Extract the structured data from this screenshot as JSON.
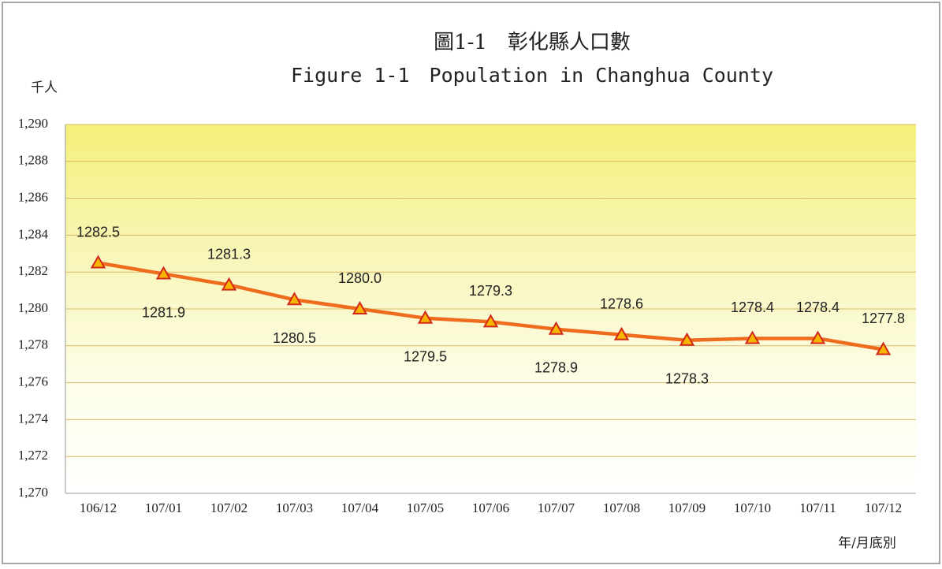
{
  "chart_data": {
    "type": "line",
    "title": "圖1-1　彰化縣人口數",
    "subtitle": "Figure 1-1　Population in Changhua County",
    "y_label": "千人",
    "x_label": "年/月底別",
    "categories": [
      "106/12",
      "107/01",
      "107/02",
      "107/03",
      "107/04",
      "107/05",
      "107/06",
      "107/07",
      "107/08",
      "107/09",
      "107/10",
      "107/11",
      "107/12"
    ],
    "series": [
      {
        "color": "#ef6c1e",
        "marker_color": "#f7b500",
        "values": [
          1282.5,
          1281.9,
          1281.3,
          1280.5,
          1280.0,
          1279.5,
          1279.3,
          1278.9,
          1278.6,
          1278.3,
          1278.4,
          1278.4,
          1277.8
        ],
        "value_labels": [
          "1282.5",
          "1281.9",
          "1281.3",
          "1280.5",
          "1280.0",
          "1279.5",
          "1279.3",
          "1278.9",
          "1278.6",
          "1278.3",
          "1278.4",
          "1278.4",
          "1277.8"
        ]
      }
    ],
    "ylim": [
      1270,
      1290
    ],
    "yticks": [
      {
        "value": 1270,
        "label": "1,270"
      },
      {
        "value": 1272,
        "label": "1,272"
      },
      {
        "value": 1274,
        "label": "1,274"
      },
      {
        "value": 1276,
        "label": "1,276"
      },
      {
        "value": 1278,
        "label": "1,278"
      },
      {
        "value": 1280,
        "label": "1,280"
      },
      {
        "value": 1282,
        "label": "1,282"
      },
      {
        "value": 1284,
        "label": "1,284"
      },
      {
        "value": 1286,
        "label": "1,286"
      },
      {
        "value": 1288,
        "label": "1,288"
      },
      {
        "value": 1290,
        "label": "1,290"
      }
    ],
    "grid": true
  }
}
